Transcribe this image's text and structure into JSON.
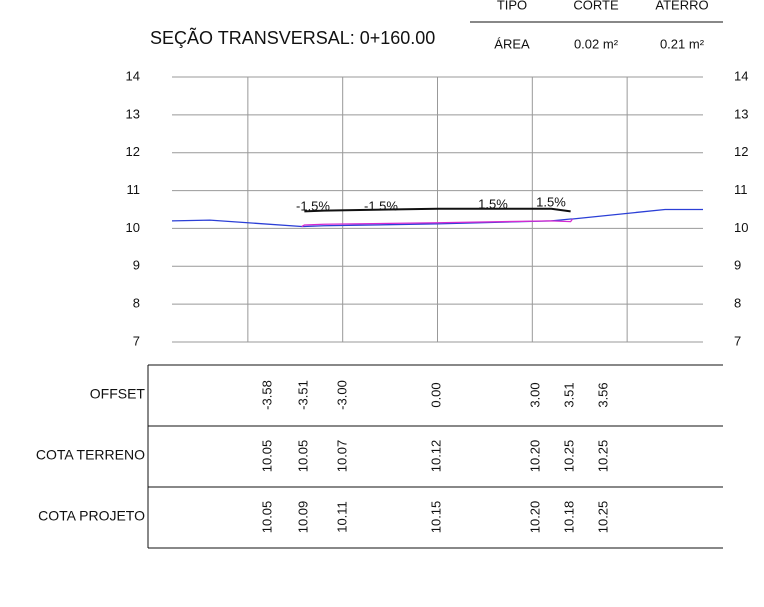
{
  "header": {
    "columns": [
      "TIPO",
      "CORTE",
      "ATERRO"
    ],
    "row": [
      "ÁREA",
      "0.02 m²",
      "0.21 m²"
    ]
  },
  "chart_data": {
    "type": "line",
    "title": "SEÇÃO TRANSVERSAL: 0+160.00",
    "xlim": [
      -7,
      7
    ],
    "xticks": [
      -5,
      -2.5,
      0,
      2.5,
      5
    ],
    "ylim": [
      7,
      14
    ],
    "yticks": [
      7,
      8,
      9,
      10,
      11,
      12,
      13,
      14
    ],
    "grid": true,
    "series": [
      {
        "color": "#2b3fd6",
        "x": [
          -7,
          -6,
          -3.58,
          -3.51,
          -3,
          0,
          3,
          3.51,
          3.56,
          6,
          7
        ],
        "values": [
          10.2,
          10.22,
          10.05,
          10.05,
          10.07,
          10.12,
          10.2,
          10.25,
          10.25,
          10.5,
          10.5
        ]
      },
      {
        "color": "#111111",
        "x": [
          -3.51,
          -3,
          0,
          3,
          3.51
        ],
        "values": [
          10.45,
          10.47,
          10.52,
          10.52,
          10.45
        ]
      },
      {
        "color": "#d62bd0",
        "x": [
          -3.58,
          -3.51,
          -3,
          0,
          3,
          3.51,
          3.56
        ],
        "values": [
          10.05,
          10.09,
          10.11,
          10.15,
          10.2,
          10.18,
          10.25
        ]
      }
    ],
    "annotations": [
      "-1.5%",
      "-1.5%",
      "1.5%",
      "1.5%"
    ]
  },
  "table": {
    "rows": [
      {
        "label": "OFFSET",
        "values": [
          "-3.58",
          "-3.51",
          "-3.00",
          "0.00",
          "3.00",
          "3.51",
          "3.56"
        ]
      },
      {
        "label": "COTA TERRENO",
        "values": [
          "10.05",
          "10.05",
          "10.07",
          "10.12",
          "10.20",
          "10.25",
          "10.25"
        ]
      },
      {
        "label": "COTA PROJETO",
        "values": [
          "10.05",
          "10.09",
          "10.11",
          "10.15",
          "10.20",
          "10.18",
          "10.25"
        ]
      }
    ]
  }
}
